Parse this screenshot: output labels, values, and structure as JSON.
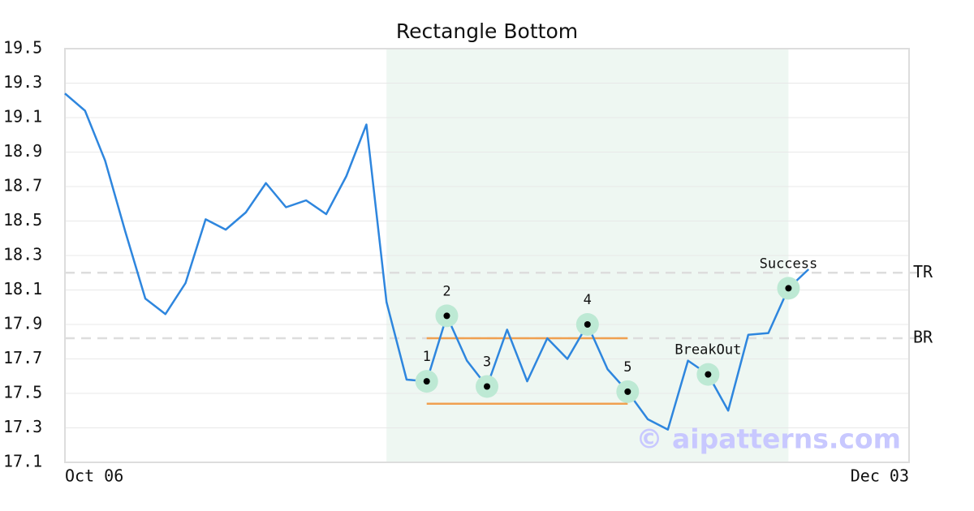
{
  "chart_data": {
    "type": "line",
    "title": "Rectangle Bottom",
    "categories": [
      "Oct 06",
      null,
      null,
      null,
      null,
      null,
      null,
      null,
      null,
      null,
      null,
      null,
      null,
      null,
      null,
      null,
      null,
      null,
      null,
      null,
      null,
      null,
      null,
      null,
      null,
      null,
      null,
      null,
      null,
      null,
      null,
      null,
      null,
      null,
      null,
      null,
      null,
      null,
      null,
      null,
      null,
      null,
      "Dec 03"
    ],
    "series": [
      {
        "name": "Price",
        "color": "#2e86de",
        "values": [
          19.24,
          19.14,
          18.85,
          18.44,
          18.05,
          17.96,
          18.14,
          18.51,
          18.45,
          18.55,
          18.72,
          18.58,
          18.62,
          18.54,
          18.76,
          19.06,
          18.03,
          17.58,
          17.57,
          17.95,
          17.69,
          17.54,
          17.87,
          17.57,
          17.82,
          17.7,
          17.9,
          17.64,
          17.51,
          17.35,
          17.29,
          17.69,
          17.61,
          17.4,
          17.84,
          17.85,
          18.11,
          18.22,
          null,
          null,
          null,
          null,
          null
        ]
      }
    ],
    "ylim": [
      17.1,
      19.5
    ],
    "yticks": [
      17.1,
      17.3,
      17.5,
      17.7,
      17.9,
      18.1,
      18.3,
      18.5,
      18.7,
      18.9,
      19.1,
      19.3,
      19.5
    ],
    "grid": true,
    "highlight": {
      "from_index": 16,
      "to_index": 36,
      "color": "#eef7f2"
    },
    "reference_lines": [
      {
        "label": "TR",
        "value": 18.2
      },
      {
        "label": "BR",
        "value": 17.82
      }
    ],
    "pattern_lines": [
      {
        "value": 17.82,
        "from_index": 18,
        "to_index": 28,
        "color": "#f0a050"
      },
      {
        "value": 17.44,
        "from_index": 18,
        "to_index": 28,
        "color": "#f0a050"
      }
    ],
    "annotations": [
      {
        "label": "1",
        "index": 18
      },
      {
        "label": "2",
        "index": 19
      },
      {
        "label": "3",
        "index": 21
      },
      {
        "label": "4",
        "index": 26
      },
      {
        "label": "5",
        "index": 28
      },
      {
        "label": "BreakOut",
        "index": 32
      },
      {
        "label": "Success",
        "index": 36
      }
    ],
    "watermark": "© aipatterns.com"
  }
}
